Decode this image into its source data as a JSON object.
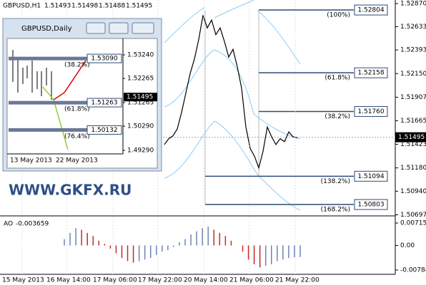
{
  "header": {
    "symbol": "GBPUSD,H1",
    "ohlc": [
      1.51493,
      1.51498,
      1.51488,
      1.51495
    ]
  },
  "price_axis": {
    "ylim": [
      1.50708,
      1.52907
    ],
    "ticks": [
      {
        "value": 1.5287,
        "label": "1.52870"
      },
      1.52633,
      1.52393,
      {
        "value": 1.5215,
        "label": "1.52150"
      },
      1.51907,
      1.51665,
      1.51423,
      {
        "value": 1.5118,
        "label": "1.51180"
      },
      {
        "value": 1.5094,
        "label": "1.50940"
      },
      1.50697
    ],
    "current": 1.51495
  },
  "closes": [
    1.5142,
    1.5148,
    1.5151,
    1.5158,
    1.5175,
    1.5195,
    1.5215,
    1.523,
    1.525,
    1.5275,
    1.5262,
    1.527,
    1.5255,
    1.5262,
    1.5248,
    1.5232,
    1.524,
    1.5222,
    1.52,
    1.516,
    1.5138,
    1.513,
    1.5118,
    1.5135,
    1.516,
    1.515,
    1.5142,
    1.5148,
    1.5145,
    1.5155,
    1.515,
    1.5149
  ],
  "fib": [
    {
      "level": "(100%)",
      "price": 1.52804
    },
    {
      "level": "(61.8%)",
      "price": 1.52158
    },
    {
      "level": "(38.2%)",
      "price": {
        "value": 1.5176,
        "label": "1.51760"
      }
    },
    {
      "level": "(138.2%)",
      "price": 1.51094
    },
    {
      "level": "(168.2%)",
      "price": 1.50803
    }
  ],
  "watermark": "WWW.GKFX.RU",
  "inset": {
    "title": "GBPUSD,Daily",
    "ylim": [
      1.48553,
      1.53918
    ],
    "ticks": [
      {
        "value": 1.5324,
        "label": "1.53240"
      },
      1.52265,
      1.51265,
      {
        "value": 1.5029,
        "label": "1.50290"
      },
      {
        "value": 1.4929,
        "label": "1.49290"
      }
    ],
    "current": 1.51495,
    "fib": [
      {
        "level": "(38.2%)",
        "price": {
          "value": 1.5309,
          "label": "1.53090"
        }
      },
      {
        "level": "(61.8%)",
        "price": 1.51263
      },
      {
        "level": "(76.4%)",
        "price": 1.50132
      }
    ],
    "dates": [
      "13 May 2013",
      "22 May 2013"
    ]
  },
  "ao": {
    "label": "AO",
    "last": -0.003659,
    "ylim": [
      -0.0092,
      0.00851
    ],
    "ticks": [
      0.00715,
      {
        "value": 0,
        "label": "0.00"
      },
      -0.00784
    ],
    "values": [
      0.002,
      0.004,
      0.0055,
      0.005,
      0.004,
      0.003,
      0.0015,
      0.0005,
      -0.001,
      -0.0025,
      -0.004,
      -0.005,
      -0.0055,
      -0.005,
      -0.0045,
      -0.004,
      -0.003,
      -0.002,
      -0.0015,
      -0.0005,
      0.001,
      0.002,
      0.0035,
      0.0045,
      0.0055,
      0.006,
      0.005,
      0.004,
      0.003,
      0.0015,
      0.0,
      -0.002,
      -0.0045,
      -0.006,
      -0.007,
      -0.0065,
      -0.006,
      -0.005,
      -0.0045,
      -0.004,
      -0.0038,
      -0.0037
    ]
  },
  "time_axis": [
    "15 May 2013",
    "16 May 14:00",
    "17 May 06:00",
    "17 May 22:00",
    "20 May 14:00",
    "21 May 06:00",
    "21 May 22:00"
  ]
}
